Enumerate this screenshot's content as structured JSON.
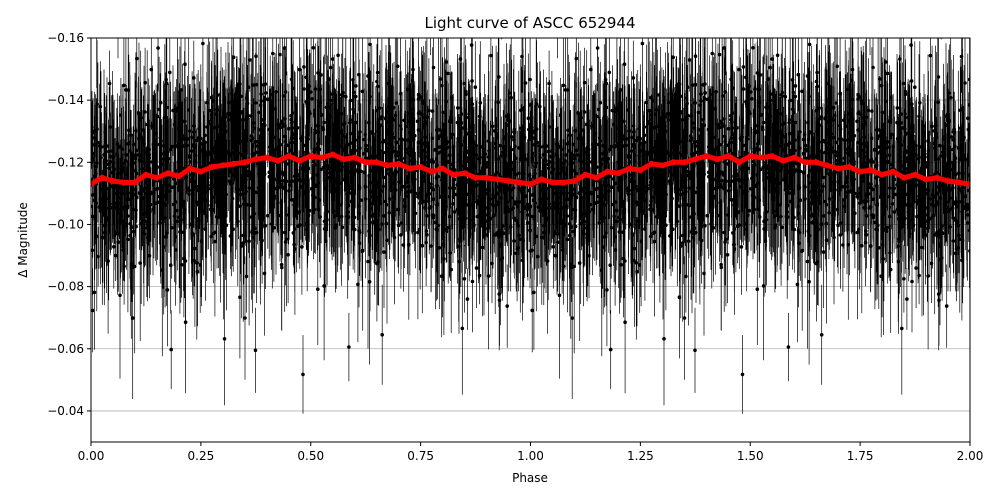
{
  "chart_data": {
    "type": "scatter",
    "title": "Light curve of ASCC 652944",
    "xlabel": "Phase",
    "ylabel": "Δ Magnitude",
    "xlim": [
      0.0,
      2.0
    ],
    "ylim": [
      -0.03,
      -0.16
    ],
    "y_inverted": true,
    "grid": true,
    "x_ticks": [
      "0.00",
      "0.25",
      "0.50",
      "0.75",
      "1.00",
      "1.25",
      "1.50",
      "1.75",
      "2.00"
    ],
    "y_ticks": [
      "−0.16",
      "−0.14",
      "−0.12",
      "−0.10",
      "−0.08",
      "−0.06",
      "−0.04"
    ],
    "series": [
      {
        "marker": "points-with-errorbars",
        "color": "#000000",
        "approx_center": -0.113,
        "approx_scatter": 0.03,
        "repeats_each_phase": 1.0
      },
      {
        "marker": "binned-line",
        "color": "#ff0000",
        "x": [
          0.0,
          0.025,
          0.05,
          0.075,
          0.1,
          0.125,
          0.15,
          0.175,
          0.2,
          0.225,
          0.25,
          0.275,
          0.3,
          0.325,
          0.35,
          0.375,
          0.4,
          0.425,
          0.45,
          0.475,
          0.5,
          0.525,
          0.55,
          0.575,
          0.6,
          0.625,
          0.65,
          0.675,
          0.7,
          0.725,
          0.75,
          0.775,
          0.8,
          0.825,
          0.85,
          0.875,
          0.9,
          0.925,
          0.95,
          0.975,
          1.0,
          1.025,
          1.05,
          1.075,
          1.1,
          1.125,
          1.15,
          1.175,
          1.2,
          1.225,
          1.25,
          1.275,
          1.3,
          1.325,
          1.35,
          1.375,
          1.4,
          1.425,
          1.45,
          1.475,
          1.5,
          1.525,
          1.55,
          1.575,
          1.6,
          1.625,
          1.65,
          1.675,
          1.7,
          1.725,
          1.75,
          1.775,
          1.8,
          1.825,
          1.85,
          1.875,
          1.9,
          1.925,
          1.95,
          1.975,
          2.0
        ],
        "y": [
          -0.113,
          -0.115,
          -0.114,
          -0.1135,
          -0.1135,
          -0.116,
          -0.115,
          -0.1165,
          -0.1155,
          -0.118,
          -0.117,
          -0.1185,
          -0.119,
          -0.1195,
          -0.12,
          -0.121,
          -0.1215,
          -0.1205,
          -0.122,
          -0.1205,
          -0.122,
          -0.1215,
          -0.1225,
          -0.121,
          -0.1215,
          -0.12,
          -0.12,
          -0.119,
          -0.1195,
          -0.118,
          -0.1185,
          -0.117,
          -0.118,
          -0.116,
          -0.1165,
          -0.115,
          -0.115,
          -0.1145,
          -0.114,
          -0.1135,
          -0.113,
          -0.1145,
          -0.1135,
          -0.1135,
          -0.114,
          -0.116,
          -0.115,
          -0.117,
          -0.1165,
          -0.118,
          -0.1175,
          -0.1195,
          -0.119,
          -0.12,
          -0.12,
          -0.121,
          -0.122,
          -0.121,
          -0.122,
          -0.12,
          -0.122,
          -0.1215,
          -0.122,
          -0.1205,
          -0.1215,
          -0.12,
          -0.12,
          -0.119,
          -0.118,
          -0.1185,
          -0.117,
          -0.1175,
          -0.116,
          -0.117,
          -0.115,
          -0.116,
          -0.1145,
          -0.115,
          -0.114,
          -0.1135,
          -0.113
        ]
      }
    ]
  }
}
